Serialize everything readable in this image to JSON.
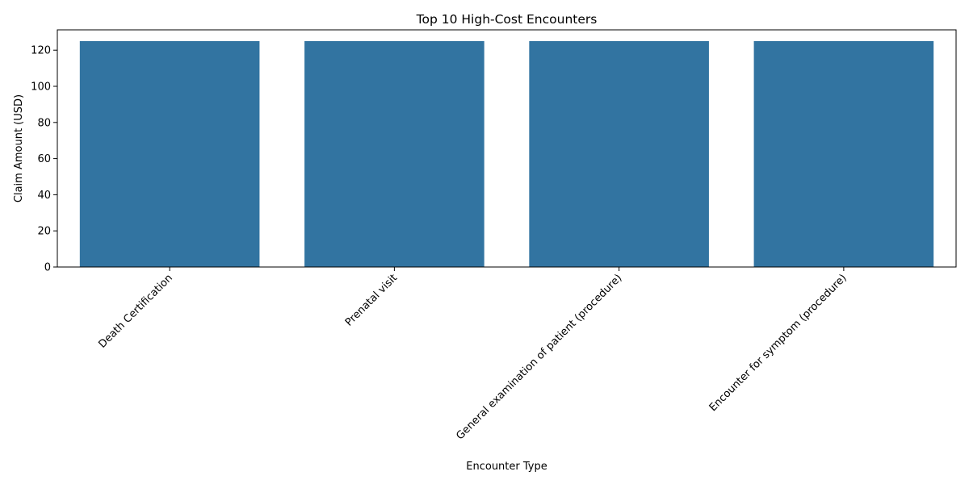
{
  "chart_data": {
    "type": "bar",
    "title": "Top 10 High-Cost Encounters",
    "xlabel": "Encounter Type",
    "ylabel": "Claim Amount (USD)",
    "categories": [
      "Death Certification",
      "Prenatal visit",
      "General examination of patient (procedure)",
      "Encounter for symptom (procedure)"
    ],
    "values": [
      125,
      125,
      125,
      125
    ],
    "ylim": [
      0,
      131.25
    ],
    "yticks": [
      0,
      20,
      40,
      60,
      80,
      100,
      120
    ],
    "bar_color": "#3274a1",
    "grid": false,
    "legend": "none"
  }
}
